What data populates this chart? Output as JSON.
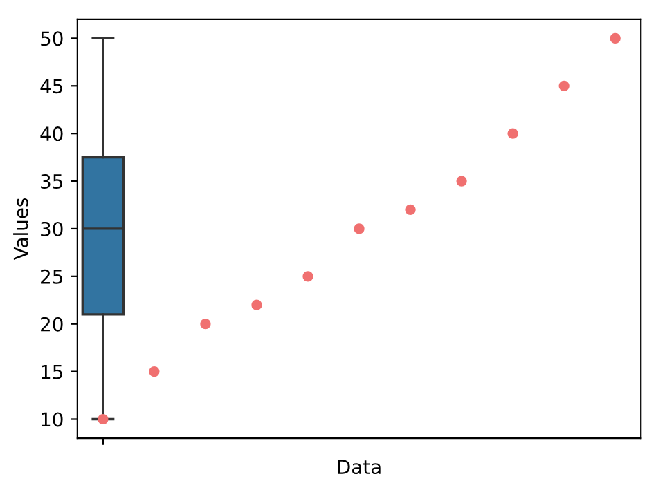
{
  "chart_data": {
    "type": "box",
    "xlabel": "Data",
    "ylabel": "Values",
    "categories": [
      null,
      null,
      null,
      null,
      null,
      null,
      null,
      null,
      null,
      null,
      null
    ],
    "boxes": [
      {
        "low": 10,
        "q1": 21,
        "median": 30,
        "q3": 37.5,
        "high": 50
      },
      null,
      null,
      null,
      null,
      null,
      null,
      null,
      null,
      null,
      null
    ],
    "color": "#3274a1",
    "series": [
      {
        "type": "scatter",
        "values": [
          10,
          15,
          20,
          22,
          25,
          30,
          32,
          35,
          40,
          45,
          50
        ],
        "color": "#f07070",
        "marker": "circle"
      }
    ],
    "ylim": [
      8,
      52
    ],
    "yticks": [
      10,
      15,
      20,
      25,
      30,
      35,
      40,
      45,
      50
    ],
    "grid": false,
    "legend": false
  }
}
